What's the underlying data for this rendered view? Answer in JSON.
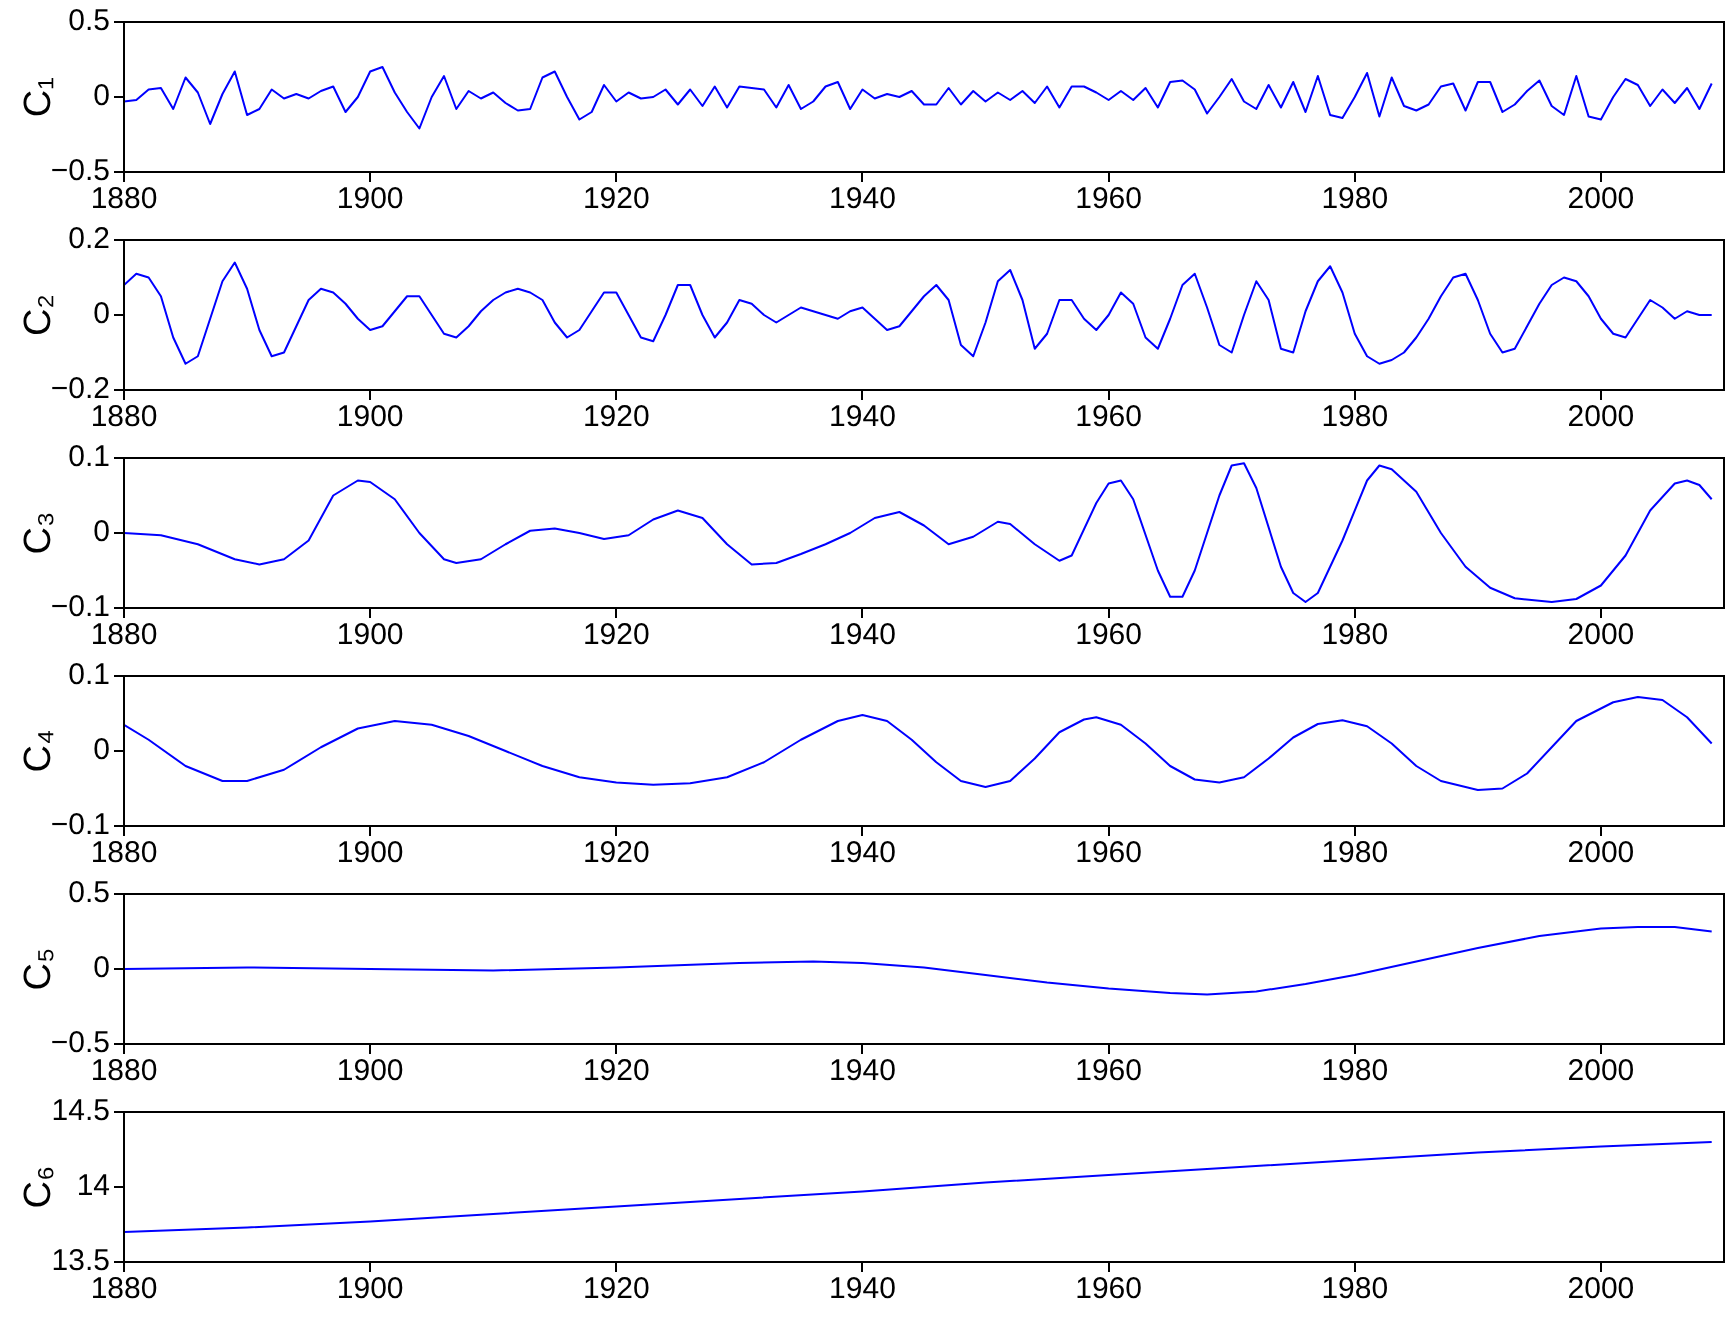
{
  "chart_data": [
    {
      "type": "line",
      "ylabel": "C₁",
      "xlim": [
        1880,
        2010
      ],
      "xticks": [
        1880,
        1900,
        1920,
        1940,
        1960,
        1980,
        2000
      ],
      "ylim": [
        -0.5,
        0.5
      ],
      "yticks": [
        -0.5,
        0,
        0.5
      ],
      "grid": false,
      "legend": false,
      "marker": "none",
      "line_style": "solid",
      "x": [
        1880,
        1881,
        1882,
        1883,
        1884,
        1885,
        1886,
        1887,
        1888,
        1889,
        1890,
        1891,
        1892,
        1893,
        1894,
        1895,
        1896,
        1897,
        1898,
        1899,
        1900,
        1901,
        1902,
        1903,
        1904,
        1905,
        1906,
        1907,
        1908,
        1909,
        1910,
        1911,
        1912,
        1913,
        1914,
        1915,
        1916,
        1917,
        1918,
        1919,
        1920,
        1921,
        1922,
        1923,
        1924,
        1925,
        1926,
        1927,
        1928,
        1929,
        1930,
        1931,
        1932,
        1933,
        1934,
        1935,
        1936,
        1937,
        1938,
        1939,
        1940,
        1941,
        1942,
        1943,
        1944,
        1945,
        1946,
        1947,
        1948,
        1949,
        1950,
        1951,
        1952,
        1953,
        1954,
        1955,
        1956,
        1957,
        1958,
        1959,
        1960,
        1961,
        1962,
        1963,
        1964,
        1965,
        1966,
        1967,
        1968,
        1969,
        1970,
        1971,
        1972,
        1973,
        1974,
        1975,
        1976,
        1977,
        1978,
        1979,
        1980,
        1981,
        1982,
        1983,
        1984,
        1985,
        1986,
        1987,
        1988,
        1989,
        1990,
        1991,
        1992,
        1993,
        1994,
        1995,
        1996,
        1997,
        1998,
        1999,
        2000,
        2001,
        2002,
        2003,
        2004,
        2005,
        2006,
        2007,
        2008,
        2009
      ],
      "series": [
        {
          "color": "#0000ff",
          "values": [
            -0.03,
            -0.02,
            0.05,
            0.06,
            -0.08,
            0.13,
            0.03,
            -0.18,
            0.02,
            0.17,
            -0.12,
            -0.08,
            0.05,
            -0.01,
            0.02,
            -0.01,
            0.04,
            0.07,
            -0.1,
            0.0,
            0.17,
            0.2,
            0.03,
            -0.1,
            -0.21,
            0.0,
            0.14,
            -0.08,
            0.04,
            -0.01,
            0.03,
            -0.04,
            -0.09,
            -0.08,
            0.13,
            0.17,
            0.0,
            -0.15,
            -0.1,
            0.08,
            -0.03,
            0.03,
            -0.01,
            0.0,
            0.05,
            -0.05,
            0.05,
            -0.06,
            0.07,
            -0.07,
            0.07,
            0.06,
            0.05,
            -0.07,
            0.08,
            -0.08,
            -0.03,
            0.07,
            0.1,
            -0.08,
            0.05,
            -0.01,
            0.02,
            0.0,
            0.04,
            -0.05,
            -0.05,
            0.06,
            -0.05,
            0.04,
            -0.03,
            0.03,
            -0.02,
            0.04,
            -0.04,
            0.07,
            -0.07,
            0.07,
            0.07,
            0.03,
            -0.02,
            0.04,
            -0.02,
            0.06,
            -0.07,
            0.1,
            0.11,
            0.05,
            -0.11,
            0.0,
            0.12,
            -0.03,
            -0.08,
            0.08,
            -0.07,
            0.1,
            -0.1,
            0.14,
            -0.12,
            -0.14,
            0.0,
            0.16,
            -0.13,
            0.13,
            -0.06,
            -0.09,
            -0.05,
            0.07,
            0.09,
            -0.09,
            0.1,
            0.1,
            -0.1,
            -0.05,
            0.04,
            0.11,
            -0.06,
            -0.12,
            0.14,
            -0.13,
            -0.15,
            0.0,
            0.12,
            0.08,
            -0.06,
            0.05,
            -0.04,
            0.06,
            -0.08,
            0.09
          ]
        }
      ]
    },
    {
      "type": "line",
      "ylabel": "C₂",
      "xlim": [
        1880,
        2010
      ],
      "xticks": [
        1880,
        1900,
        1920,
        1940,
        1960,
        1980,
        2000
      ],
      "ylim": [
        -0.2,
        0.2
      ],
      "yticks": [
        -0.2,
        0,
        0.2
      ],
      "grid": false,
      "legend": false,
      "marker": "none",
      "line_style": "solid",
      "x": [
        1880,
        1881,
        1882,
        1883,
        1884,
        1885,
        1886,
        1887,
        1888,
        1889,
        1890,
        1891,
        1892,
        1893,
        1894,
        1895,
        1896,
        1897,
        1898,
        1899,
        1900,
        1901,
        1902,
        1903,
        1904,
        1905,
        1906,
        1907,
        1908,
        1909,
        1910,
        1911,
        1912,
        1913,
        1914,
        1915,
        1916,
        1917,
        1918,
        1919,
        1920,
        1921,
        1922,
        1923,
        1924,
        1925,
        1926,
        1927,
        1928,
        1929,
        1930,
        1931,
        1932,
        1933,
        1934,
        1935,
        1936,
        1937,
        1938,
        1939,
        1940,
        1941,
        1942,
        1943,
        1944,
        1945,
        1946,
        1947,
        1948,
        1949,
        1950,
        1951,
        1952,
        1953,
        1954,
        1955,
        1956,
        1957,
        1958,
        1959,
        1960,
        1961,
        1962,
        1963,
        1964,
        1965,
        1966,
        1967,
        1968,
        1969,
        1970,
        1971,
        1972,
        1973,
        1974,
        1975,
        1976,
        1977,
        1978,
        1979,
        1980,
        1981,
        1982,
        1983,
        1984,
        1985,
        1986,
        1987,
        1988,
        1989,
        1990,
        1991,
        1992,
        1993,
        1994,
        1995,
        1996,
        1997,
        1998,
        1999,
        2000,
        2001,
        2002,
        2003,
        2004,
        2005,
        2006,
        2007,
        2008,
        2009
      ],
      "series": [
        {
          "color": "#0000ff",
          "values": [
            0.08,
            0.11,
            0.1,
            0.05,
            -0.06,
            -0.13,
            -0.11,
            -0.01,
            0.09,
            0.14,
            0.07,
            -0.04,
            -0.11,
            -0.1,
            -0.03,
            0.04,
            0.07,
            0.06,
            0.03,
            -0.01,
            -0.04,
            -0.03,
            0.01,
            0.05,
            0.05,
            0.0,
            -0.05,
            -0.06,
            -0.03,
            0.01,
            0.04,
            0.06,
            0.07,
            0.06,
            0.04,
            -0.02,
            -0.06,
            -0.04,
            0.01,
            0.06,
            0.06,
            0.0,
            -0.06,
            -0.07,
            0.0,
            0.08,
            0.08,
            0.0,
            -0.06,
            -0.02,
            0.04,
            0.03,
            0.0,
            -0.02,
            0.0,
            0.02,
            0.01,
            0.0,
            -0.01,
            0.01,
            0.02,
            -0.01,
            -0.04,
            -0.03,
            0.01,
            0.05,
            0.08,
            0.04,
            -0.08,
            -0.11,
            -0.02,
            0.09,
            0.12,
            0.04,
            -0.09,
            -0.05,
            0.04,
            0.04,
            -0.01,
            -0.04,
            0.0,
            0.06,
            0.03,
            -0.06,
            -0.09,
            -0.01,
            0.08,
            0.11,
            0.02,
            -0.08,
            -0.1,
            0.0,
            0.09,
            0.04,
            -0.09,
            -0.1,
            0.01,
            0.09,
            0.13,
            0.06,
            -0.05,
            -0.11,
            -0.13,
            -0.12,
            -0.1,
            -0.06,
            -0.01,
            0.05,
            0.1,
            0.11,
            0.04,
            -0.05,
            -0.1,
            -0.09,
            -0.03,
            0.03,
            0.08,
            0.1,
            0.09,
            0.05,
            -0.01,
            -0.05,
            -0.06,
            -0.01,
            0.04,
            0.02,
            -0.01,
            0.01,
            0.0,
            0.0
          ]
        }
      ]
    },
    {
      "type": "line",
      "ylabel": "C₃",
      "xlim": [
        1880,
        2010
      ],
      "xticks": [
        1880,
        1900,
        1920,
        1940,
        1960,
        1980,
        2000
      ],
      "ylim": [
        -0.1,
        0.1
      ],
      "yticks": [
        -0.1,
        0,
        0.1
      ],
      "grid": false,
      "legend": false,
      "marker": "none",
      "line_style": "solid",
      "x": [
        1880,
        1883,
        1886,
        1889,
        1891,
        1893,
        1895,
        1897,
        1899,
        1900,
        1902,
        1904,
        1906,
        1907,
        1909,
        1911,
        1913,
        1915,
        1917,
        1919,
        1921,
        1923,
        1925,
        1927,
        1929,
        1931,
        1933,
        1935,
        1937,
        1939,
        1941,
        1943,
        1945,
        1947,
        1949,
        1951,
        1952,
        1954,
        1956,
        1957,
        1959,
        1960,
        1961,
        1962,
        1964,
        1965,
        1966,
        1967,
        1969,
        1970,
        1971,
        1972,
        1974,
        1975,
        1976,
        1977,
        1979,
        1981,
        1982,
        1983,
        1985,
        1987,
        1989,
        1991,
        1993,
        1996,
        1998,
        2000,
        2002,
        2004,
        2006,
        2007,
        2008,
        2009
      ],
      "series": [
        {
          "color": "#0000ff",
          "values": [
            0.0,
            -0.003,
            -0.015,
            -0.035,
            -0.042,
            -0.035,
            -0.01,
            0.05,
            0.07,
            0.068,
            0.045,
            0.0,
            -0.035,
            -0.04,
            -0.035,
            -0.015,
            0.003,
            0.006,
            0.0,
            -0.008,
            -0.003,
            0.018,
            0.03,
            0.02,
            -0.015,
            -0.042,
            -0.04,
            -0.028,
            -0.015,
            0.0,
            0.02,
            0.028,
            0.01,
            -0.015,
            -0.005,
            0.015,
            0.012,
            -0.015,
            -0.037,
            -0.03,
            0.04,
            0.066,
            0.07,
            0.045,
            -0.05,
            -0.085,
            -0.085,
            -0.05,
            0.05,
            0.09,
            0.093,
            0.06,
            -0.045,
            -0.08,
            -0.092,
            -0.08,
            -0.01,
            0.07,
            0.09,
            0.085,
            0.055,
            0.0,
            -0.045,
            -0.073,
            -0.087,
            -0.092,
            -0.088,
            -0.07,
            -0.03,
            0.03,
            0.066,
            0.07,
            0.064,
            0.045
          ]
        }
      ]
    },
    {
      "type": "line",
      "ylabel": "C₄",
      "xlim": [
        1880,
        2010
      ],
      "xticks": [
        1880,
        1900,
        1920,
        1940,
        1960,
        1980,
        2000
      ],
      "ylim": [
        -0.1,
        0.1
      ],
      "yticks": [
        -0.1,
        0,
        0.1
      ],
      "grid": false,
      "legend": false,
      "marker": "none",
      "line_style": "solid",
      "x": [
        1880,
        1882,
        1885,
        1888,
        1890,
        1893,
        1896,
        1899,
        1902,
        1905,
        1908,
        1911,
        1914,
        1917,
        1920,
        1923,
        1926,
        1929,
        1932,
        1935,
        1938,
        1940,
        1942,
        1944,
        1946,
        1948,
        1950,
        1952,
        1954,
        1956,
        1958,
        1959,
        1961,
        1963,
        1965,
        1967,
        1969,
        1971,
        1973,
        1975,
        1977,
        1979,
        1981,
        1983,
        1985,
        1987,
        1990,
        1992,
        1994,
        1996,
        1998,
        2001,
        2003,
        2005,
        2007,
        2009
      ],
      "series": [
        {
          "color": "#0000ff",
          "values": [
            0.035,
            0.015,
            -0.02,
            -0.04,
            -0.04,
            -0.025,
            0.005,
            0.03,
            0.04,
            0.035,
            0.02,
            0.0,
            -0.02,
            -0.035,
            -0.042,
            -0.045,
            -0.043,
            -0.035,
            -0.015,
            0.015,
            0.04,
            0.048,
            0.04,
            0.015,
            -0.015,
            -0.04,
            -0.048,
            -0.04,
            -0.01,
            0.025,
            0.042,
            0.045,
            0.035,
            0.01,
            -0.02,
            -0.038,
            -0.042,
            -0.035,
            -0.01,
            0.018,
            0.036,
            0.041,
            0.033,
            0.01,
            -0.02,
            -0.04,
            -0.052,
            -0.05,
            -0.03,
            0.005,
            0.04,
            0.065,
            0.072,
            0.068,
            0.045,
            0.01
          ]
        }
      ]
    },
    {
      "type": "line",
      "ylabel": "C₅",
      "xlim": [
        1880,
        2010
      ],
      "xticks": [
        1880,
        1900,
        1920,
        1940,
        1960,
        1980,
        2000
      ],
      "ylim": [
        -0.5,
        0.5
      ],
      "yticks": [
        -0.5,
        0,
        0.5
      ],
      "grid": false,
      "legend": false,
      "marker": "none",
      "line_style": "solid",
      "x": [
        1880,
        1890,
        1900,
        1910,
        1920,
        1930,
        1936,
        1940,
        1945,
        1950,
        1955,
        1960,
        1965,
        1968,
        1972,
        1976,
        1980,
        1985,
        1990,
        1995,
        2000,
        2003,
        2006,
        2009
      ],
      "series": [
        {
          "color": "#0000ff",
          "values": [
            0.0,
            0.01,
            0.0,
            -0.01,
            0.01,
            0.04,
            0.05,
            0.04,
            0.01,
            -0.04,
            -0.09,
            -0.13,
            -0.16,
            -0.17,
            -0.15,
            -0.1,
            -0.04,
            0.05,
            0.14,
            0.22,
            0.27,
            0.28,
            0.28,
            0.25
          ]
        }
      ]
    },
    {
      "type": "line",
      "ylabel": "C₆",
      "xlim": [
        1880,
        2010
      ],
      "xticks": [
        1880,
        1900,
        1920,
        1940,
        1960,
        1980,
        2000
      ],
      "ylim": [
        13.5,
        14.5
      ],
      "yticks": [
        13.5,
        14,
        14.5
      ],
      "grid": false,
      "legend": false,
      "marker": "none",
      "line_style": "solid",
      "x": [
        1880,
        1890,
        1900,
        1910,
        1920,
        1930,
        1940,
        1950,
        1960,
        1970,
        1980,
        1990,
        2000,
        2009
      ],
      "series": [
        {
          "color": "#0000ff",
          "values": [
            13.7,
            13.73,
            13.77,
            13.82,
            13.87,
            13.92,
            13.97,
            14.03,
            14.08,
            14.13,
            14.18,
            14.23,
            14.27,
            14.3
          ]
        }
      ]
    }
  ]
}
